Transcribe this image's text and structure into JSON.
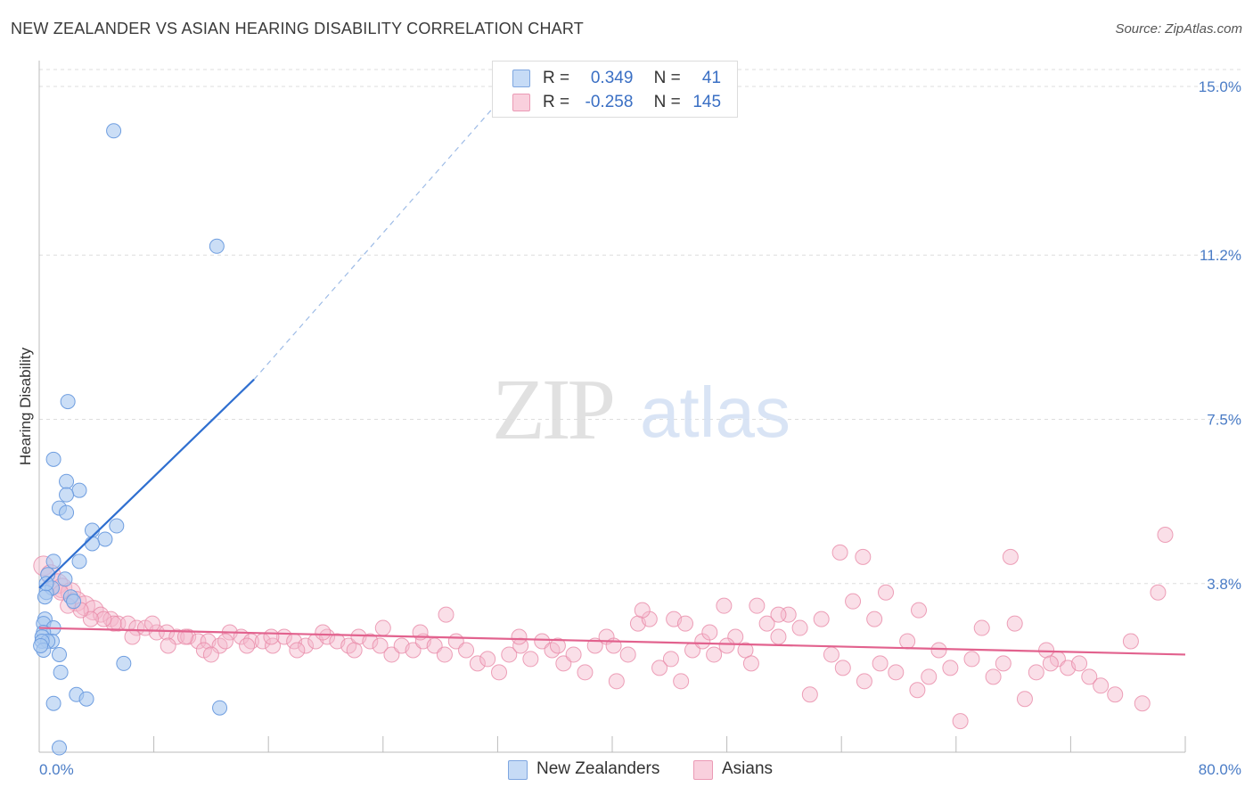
{
  "header": {
    "title": "NEW ZEALANDER VS ASIAN HEARING DISABILITY CORRELATION CHART",
    "source": "Source: ZipAtlas.com"
  },
  "watermark": {
    "zip": "ZIP",
    "atlas": "atlas"
  },
  "legend_top": {
    "rows": [
      {
        "r_label": "R =",
        "r_value": "0.349",
        "n_label": "N =",
        "n_value": "41",
        "color": "#a9c8f0"
      },
      {
        "r_label": "R =",
        "r_value": "-0.258",
        "n_label": "N =",
        "n_value": "145",
        "color": "#f5b8cb"
      }
    ]
  },
  "legend_bottom": [
    {
      "label": "New Zealanders",
      "color": "#a9c8f0"
    },
    {
      "label": "Asians",
      "color": "#f5b8cb"
    }
  ],
  "chart_data": {
    "type": "scatter",
    "ylabel": "Hearing Disability",
    "xlim": [
      0,
      80
    ],
    "ylim": [
      0,
      15.5
    ],
    "x_tick_labels": [
      {
        "value": 0,
        "label": "0.0%"
      },
      {
        "value": 80,
        "label": "80.0%"
      }
    ],
    "y_tick_labels": [
      {
        "value": 3.8,
        "label": "3.8%"
      },
      {
        "value": 7.5,
        "label": "7.5%"
      },
      {
        "value": 11.2,
        "label": "11.2%"
      },
      {
        "value": 15.0,
        "label": "15.0%"
      }
    ],
    "grid": true,
    "legend_placement": "top-center",
    "colors": {
      "blue_fill": "#a9c8f0",
      "blue_stroke": "#6f9ee0",
      "blue_line": "#2f6fd0",
      "pink_fill": "#f5b8cb",
      "pink_stroke": "#e98aa8",
      "pink_line": "#e2628e"
    },
    "series": [
      {
        "name": "New Zealanders",
        "color": "#a9c8f0",
        "points": [
          [
            5.2,
            14.0
          ],
          [
            12.4,
            11.4
          ],
          [
            2.0,
            7.9
          ],
          [
            1.0,
            6.6
          ],
          [
            1.9,
            6.1
          ],
          [
            2.8,
            5.9
          ],
          [
            1.9,
            5.8
          ],
          [
            1.4,
            5.5
          ],
          [
            1.9,
            5.4
          ],
          [
            5.4,
            5.1
          ],
          [
            3.7,
            5.0
          ],
          [
            4.6,
            4.8
          ],
          [
            3.7,
            4.7
          ],
          [
            1.0,
            4.3
          ],
          [
            2.8,
            4.3
          ],
          [
            0.6,
            4.0
          ],
          [
            1.8,
            3.9
          ],
          [
            0.9,
            3.7
          ],
          [
            0.5,
            3.6
          ],
          [
            2.2,
            3.5
          ],
          [
            0.4,
            3.5
          ],
          [
            2.4,
            3.4
          ],
          [
            0.4,
            3.0
          ],
          [
            0.3,
            2.9
          ],
          [
            1.0,
            2.8
          ],
          [
            0.3,
            2.7
          ],
          [
            0.2,
            2.6
          ],
          [
            0.9,
            2.5
          ],
          [
            0.6,
            2.5
          ],
          [
            0.2,
            2.5
          ],
          [
            0.3,
            2.3
          ],
          [
            1.4,
            2.2
          ],
          [
            5.9,
            2.0
          ],
          [
            1.5,
            1.8
          ],
          [
            2.6,
            1.3
          ],
          [
            3.3,
            1.2
          ],
          [
            1.0,
            1.1
          ],
          [
            12.6,
            1.0
          ],
          [
            1.4,
            0.1
          ],
          [
            0.1,
            2.4
          ],
          [
            0.5,
            3.8
          ]
        ],
        "trend": {
          "x": [
            0,
            15
          ],
          "y": [
            3.7,
            8.4
          ],
          "dashed_to": [
            33,
            15.0
          ]
        }
      },
      {
        "name": "Asians",
        "color": "#f5b8cb",
        "points": [
          [
            0.3,
            4.2
          ],
          [
            0.8,
            4.0
          ],
          [
            1.3,
            3.8
          ],
          [
            1.6,
            3.7
          ],
          [
            2.2,
            3.6
          ],
          [
            2.6,
            3.4
          ],
          [
            3.2,
            3.3
          ],
          [
            3.8,
            3.2
          ],
          [
            4.3,
            3.1
          ],
          [
            5.0,
            3.0
          ],
          [
            5.5,
            2.9
          ],
          [
            6.2,
            2.9
          ],
          [
            6.8,
            2.8
          ],
          [
            7.4,
            2.8
          ],
          [
            8.2,
            2.7
          ],
          [
            8.9,
            2.7
          ],
          [
            9.6,
            2.6
          ],
          [
            10.4,
            2.6
          ],
          [
            11.1,
            2.5
          ],
          [
            11.8,
            2.5
          ],
          [
            12.6,
            2.4
          ],
          [
            13.3,
            2.7
          ],
          [
            14.1,
            2.6
          ],
          [
            14.8,
            2.5
          ],
          [
            15.6,
            2.5
          ],
          [
            16.3,
            2.4
          ],
          [
            17.1,
            2.6
          ],
          [
            17.8,
            2.5
          ],
          [
            18.6,
            2.4
          ],
          [
            19.3,
            2.5
          ],
          [
            20.1,
            2.6
          ],
          [
            20.8,
            2.5
          ],
          [
            21.6,
            2.4
          ],
          [
            22.3,
            2.6
          ],
          [
            23.1,
            2.5
          ],
          [
            23.8,
            2.4
          ],
          [
            24.6,
            2.2
          ],
          [
            25.3,
            2.4
          ],
          [
            26.1,
            2.3
          ],
          [
            26.8,
            2.5
          ],
          [
            27.6,
            2.4
          ],
          [
            28.3,
            2.2
          ],
          [
            29.1,
            2.5
          ],
          [
            29.8,
            2.3
          ],
          [
            30.6,
            2.0
          ],
          [
            31.3,
            2.1
          ],
          [
            32.1,
            1.8
          ],
          [
            32.8,
            2.2
          ],
          [
            33.6,
            2.4
          ],
          [
            34.3,
            2.1
          ],
          [
            35.1,
            2.5
          ],
          [
            35.8,
            2.3
          ],
          [
            36.6,
            2.0
          ],
          [
            37.3,
            2.2
          ],
          [
            38.1,
            1.8
          ],
          [
            38.8,
            2.4
          ],
          [
            39.6,
            2.6
          ],
          [
            40.3,
            1.6
          ],
          [
            41.1,
            2.2
          ],
          [
            41.8,
            2.9
          ],
          [
            42.6,
            3.0
          ],
          [
            43.3,
            1.9
          ],
          [
            44.1,
            2.1
          ],
          [
            44.8,
            1.6
          ],
          [
            45.6,
            2.3
          ],
          [
            46.3,
            2.5
          ],
          [
            47.1,
            2.2
          ],
          [
            47.8,
            3.3
          ],
          [
            48.6,
            2.6
          ],
          [
            49.3,
            2.3
          ],
          [
            50.1,
            3.3
          ],
          [
            50.8,
            2.9
          ],
          [
            51.6,
            2.6
          ],
          [
            52.3,
            3.1
          ],
          [
            53.1,
            2.8
          ],
          [
            53.8,
            1.3
          ],
          [
            54.6,
            3.0
          ],
          [
            55.3,
            2.2
          ],
          [
            56.1,
            1.9
          ],
          [
            56.8,
            3.4
          ],
          [
            57.6,
            1.6
          ],
          [
            58.3,
            3.0
          ],
          [
            59.1,
            3.6
          ],
          [
            59.8,
            1.8
          ],
          [
            60.6,
            2.5
          ],
          [
            61.3,
            1.4
          ],
          [
            62.1,
            1.7
          ],
          [
            62.8,
            2.3
          ],
          [
            63.6,
            1.9
          ],
          [
            64.3,
            0.7
          ],
          [
            65.1,
            2.1
          ],
          [
            65.8,
            2.8
          ],
          [
            66.6,
            1.7
          ],
          [
            67.3,
            2.0
          ],
          [
            68.1,
            2.9
          ],
          [
            68.8,
            1.2
          ],
          [
            69.6,
            1.8
          ],
          [
            70.3,
            2.3
          ],
          [
            71.1,
            2.1
          ],
          [
            71.8,
            1.9
          ],
          [
            72.6,
            2.0
          ],
          [
            73.3,
            1.7
          ],
          [
            74.1,
            1.5
          ],
          [
            75.1,
            1.3
          ],
          [
            77.0,
            1.1
          ],
          [
            78.1,
            3.6
          ],
          [
            78.6,
            4.9
          ],
          [
            55.9,
            4.5
          ],
          [
            57.5,
            4.4
          ],
          [
            67.8,
            4.4
          ],
          [
            42.1,
            3.2
          ],
          [
            51.6,
            3.1
          ],
          [
            61.4,
            3.2
          ],
          [
            44.3,
            3.0
          ],
          [
            45.1,
            2.9
          ],
          [
            46.8,
            2.7
          ],
          [
            48.0,
            2.4
          ],
          [
            49.7,
            2.0
          ],
          [
            33.5,
            2.6
          ],
          [
            28.4,
            3.1
          ],
          [
            26.6,
            2.7
          ],
          [
            24.0,
            2.8
          ],
          [
            22.0,
            2.3
          ],
          [
            19.8,
            2.7
          ],
          [
            18.0,
            2.3
          ],
          [
            16.2,
            2.6
          ],
          [
            14.5,
            2.4
          ],
          [
            13.0,
            2.5
          ],
          [
            11.5,
            2.3
          ],
          [
            10.2,
            2.6
          ],
          [
            9.0,
            2.4
          ],
          [
            7.9,
            2.9
          ],
          [
            6.5,
            2.6
          ],
          [
            5.2,
            2.9
          ],
          [
            4.5,
            3.0
          ],
          [
            3.6,
            3.0
          ],
          [
            2.9,
            3.2
          ],
          [
            2.0,
            3.3
          ],
          [
            1.5,
            3.6
          ],
          [
            12.0,
            2.2
          ],
          [
            58.7,
            2.0
          ],
          [
            70.6,
            2.0
          ],
          [
            76.2,
            2.5
          ],
          [
            36.2,
            2.4
          ],
          [
            40.1,
            2.4
          ]
        ],
        "trend": {
          "x": [
            0,
            80
          ],
          "y": [
            2.8,
            2.2
          ]
        }
      }
    ]
  }
}
